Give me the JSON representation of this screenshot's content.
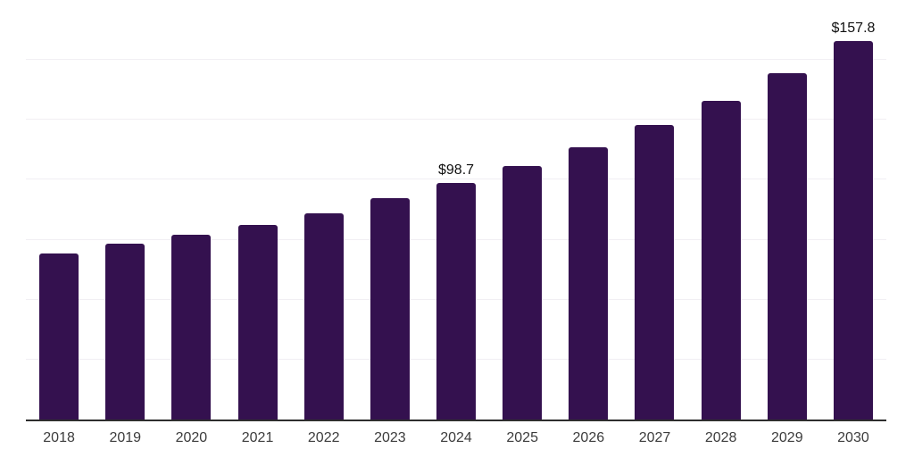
{
  "chart_data": {
    "type": "bar",
    "title": "",
    "xlabel": "",
    "ylabel": "",
    "categories": [
      "2018",
      "2019",
      "2020",
      "2021",
      "2022",
      "2023",
      "2024",
      "2025",
      "2026",
      "2027",
      "2028",
      "2029",
      "2030"
    ],
    "values": [
      69.4,
      73.2,
      77.1,
      81.2,
      86.1,
      92.2,
      98.7,
      105.7,
      113.7,
      122.9,
      133.0,
      144.5,
      157.8
    ],
    "data_labels": [
      "",
      "",
      "",
      "",
      "",
      "",
      "$98.7",
      "",
      "",
      "",
      "",
      "",
      "$157.8"
    ],
    "ylim": [
      0,
      175
    ],
    "y_gridlines": [
      25,
      50,
      75,
      100,
      125,
      150,
      175
    ],
    "grid": "horizontal-light",
    "legend": "none",
    "colors": {
      "bar": "#34114F",
      "gridline": "#f1eff3",
      "axis_line": "#2e2e2e",
      "tick_label": "#3c3c3c",
      "data_label": "#111111",
      "background": "#ffffff"
    }
  }
}
